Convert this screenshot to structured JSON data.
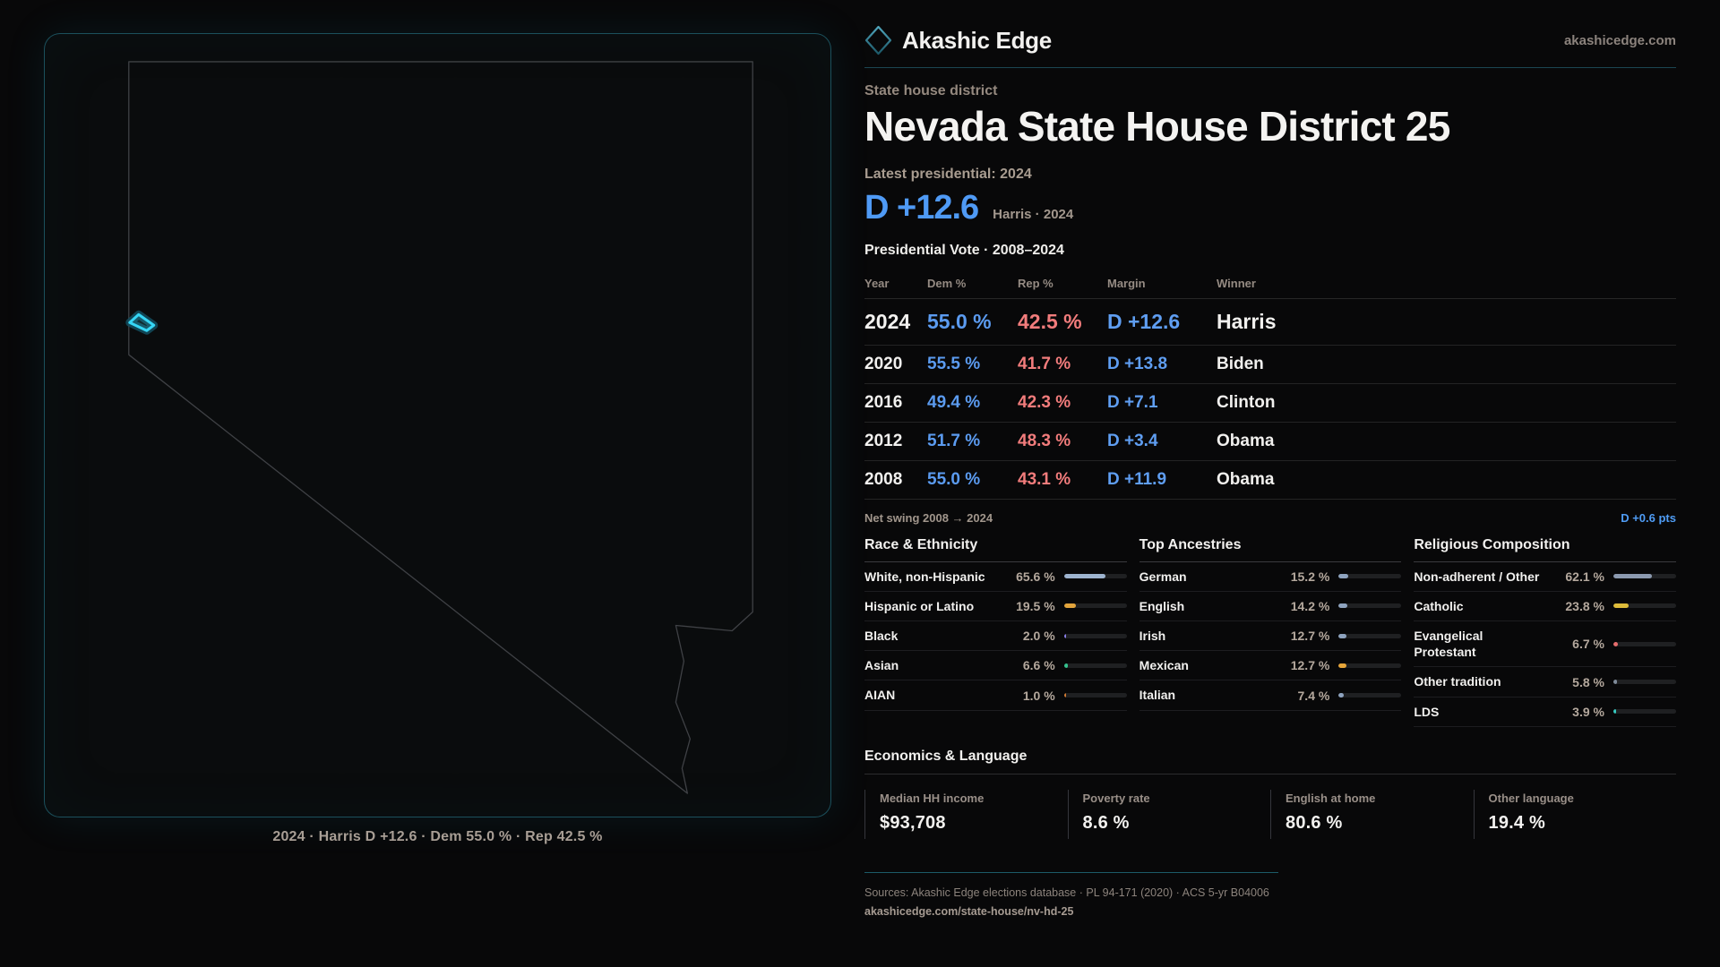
{
  "header": {
    "brand": "Akashic Edge",
    "site": "akashicedge.com"
  },
  "map": {
    "caption": "2024 · Harris D +12.6 · Dem 55.0 % · Rep 42.5 %",
    "accent": "#35d6f5",
    "outline_color": "#3f4145"
  },
  "district": {
    "eyebrow": "State house district",
    "title": "Nevada State House District 25",
    "latest_label": "Latest presidential: 2024",
    "headline_margin": "D +12.6",
    "headline_context": "Harris · 2024"
  },
  "vote_table": {
    "title": "Presidential Vote · 2008–2024",
    "columns": [
      "Year",
      "Dem %",
      "Rep %",
      "Margin",
      "Winner"
    ],
    "rows": [
      {
        "year": "2024",
        "dem": "55.0 %",
        "rep": "42.5 %",
        "margin": "D +12.6",
        "winner": "Harris",
        "emphasis": true
      },
      {
        "year": "2020",
        "dem": "55.5 %",
        "rep": "41.7 %",
        "margin": "D +13.8",
        "winner": "Biden",
        "emphasis": false
      },
      {
        "year": "2016",
        "dem": "49.4 %",
        "rep": "42.3 %",
        "margin": "D +7.1",
        "winner": "Clinton",
        "emphasis": false
      },
      {
        "year": "2012",
        "dem": "51.7 %",
        "rep": "48.3 %",
        "margin": "D +3.4",
        "winner": "Obama",
        "emphasis": false
      },
      {
        "year": "2008",
        "dem": "55.0 %",
        "rep": "43.1 %",
        "margin": "D +11.9",
        "winner": "Obama",
        "emphasis": false
      }
    ],
    "net_swing_label": "Net swing 2008 → 2024",
    "net_swing_value": "D +0.6 pts",
    "dem_color": "#5b9bf0",
    "rep_color": "#f27c7c"
  },
  "chart_data": [
    {
      "type": "bar",
      "title": "Race & Ethnicity",
      "categories": [
        "White, non-Hispanic",
        "Hispanic or Latino",
        "Black",
        "Asian",
        "AIAN"
      ],
      "values": [
        65.6,
        19.5,
        2.0,
        6.6,
        1.0
      ],
      "labels": [
        "65.6 %",
        "19.5 %",
        "2.0 %",
        "6.6 %",
        "1.0 %"
      ],
      "colors": [
        "#9db3cf",
        "#e2a43c",
        "#8a7fe8",
        "#35c28e",
        "#d07a33"
      ],
      "xlim": [
        0,
        100
      ]
    },
    {
      "type": "bar",
      "title": "Top Ancestries",
      "categories": [
        "German",
        "English",
        "Irish",
        "Mexican",
        "Italian"
      ],
      "values": [
        15.2,
        14.2,
        12.7,
        12.7,
        7.4
      ],
      "labels": [
        "15.2 %",
        "14.2 %",
        "12.7 %",
        "12.7 %",
        "7.4 %"
      ],
      "colors": [
        "#8ea3bf",
        "#8ea3bf",
        "#8ea3bf",
        "#e7a63a",
        "#8ea3bf"
      ],
      "xlim": [
        0,
        100
      ]
    },
    {
      "type": "bar",
      "title": "Religious Composition",
      "categories": [
        "Non-adherent / Other",
        "Catholic",
        "Evangelical Protestant",
        "Other tradition",
        "LDS"
      ],
      "values": [
        62.1,
        23.8,
        6.7,
        5.8,
        3.9
      ],
      "labels": [
        "62.1 %",
        "23.8 %",
        "6.7 %",
        "5.8 %",
        "3.9 %"
      ],
      "colors": [
        "#8b99af",
        "#ddbb3a",
        "#e76d6d",
        "#7e8a99",
        "#36c9c0"
      ],
      "xlim": [
        0,
        100
      ]
    }
  ],
  "economics": {
    "title": "Economics & Language",
    "stats": [
      {
        "label": "Median HH income",
        "value": "$93,708"
      },
      {
        "label": "Poverty rate",
        "value": "8.6 %"
      },
      {
        "label": "English at home",
        "value": "80.6 %"
      },
      {
        "label": "Other language",
        "value": "19.4 %"
      }
    ]
  },
  "footer": {
    "sources": "Sources: Akashic Edge elections database · PL 94-171 (2020) · ACS 5-yr B04006",
    "permalink": "akashicedge.com/state-house/nv-hd-25"
  }
}
